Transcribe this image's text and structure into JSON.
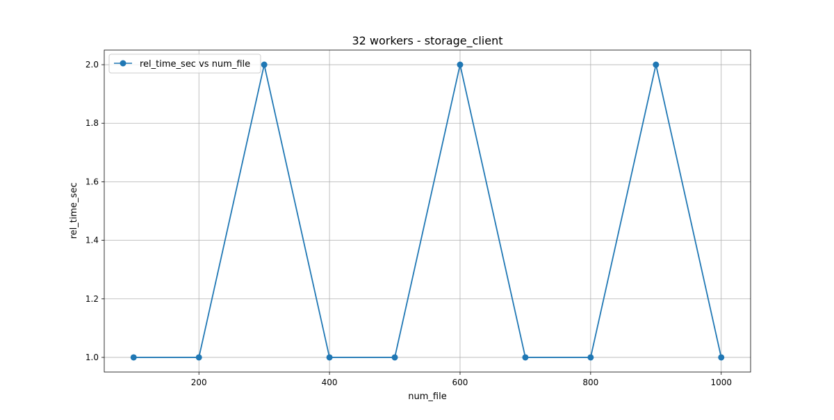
{
  "chart_data": {
    "type": "line",
    "title": "32 workers - storage_client",
    "xlabel": "num_file",
    "ylabel": "rel_time_sec",
    "x": [
      100,
      200,
      300,
      400,
      500,
      600,
      700,
      800,
      900,
      1000
    ],
    "series": [
      {
        "name": "rel_time_sec vs num_file",
        "values": [
          1.0,
          1.0,
          2.0,
          1.0,
          1.0,
          2.0,
          1.0,
          1.0,
          2.0,
          1.0
        ],
        "color": "#1f77b4",
        "marker": "circle"
      }
    ],
    "xlim": [
      55,
      1045
    ],
    "ylim": [
      0.95,
      2.05
    ],
    "xticks": [
      200,
      400,
      600,
      800,
      1000
    ],
    "yticks": [
      1.0,
      1.2,
      1.4,
      1.6,
      1.8,
      2.0
    ],
    "xtick_labels": [
      "200",
      "400",
      "600",
      "800",
      "1000"
    ],
    "ytick_labels": [
      "1.0",
      "1.2",
      "1.4",
      "1.6",
      "1.8",
      "2.0"
    ],
    "grid": true,
    "legend_position": "upper-left"
  }
}
